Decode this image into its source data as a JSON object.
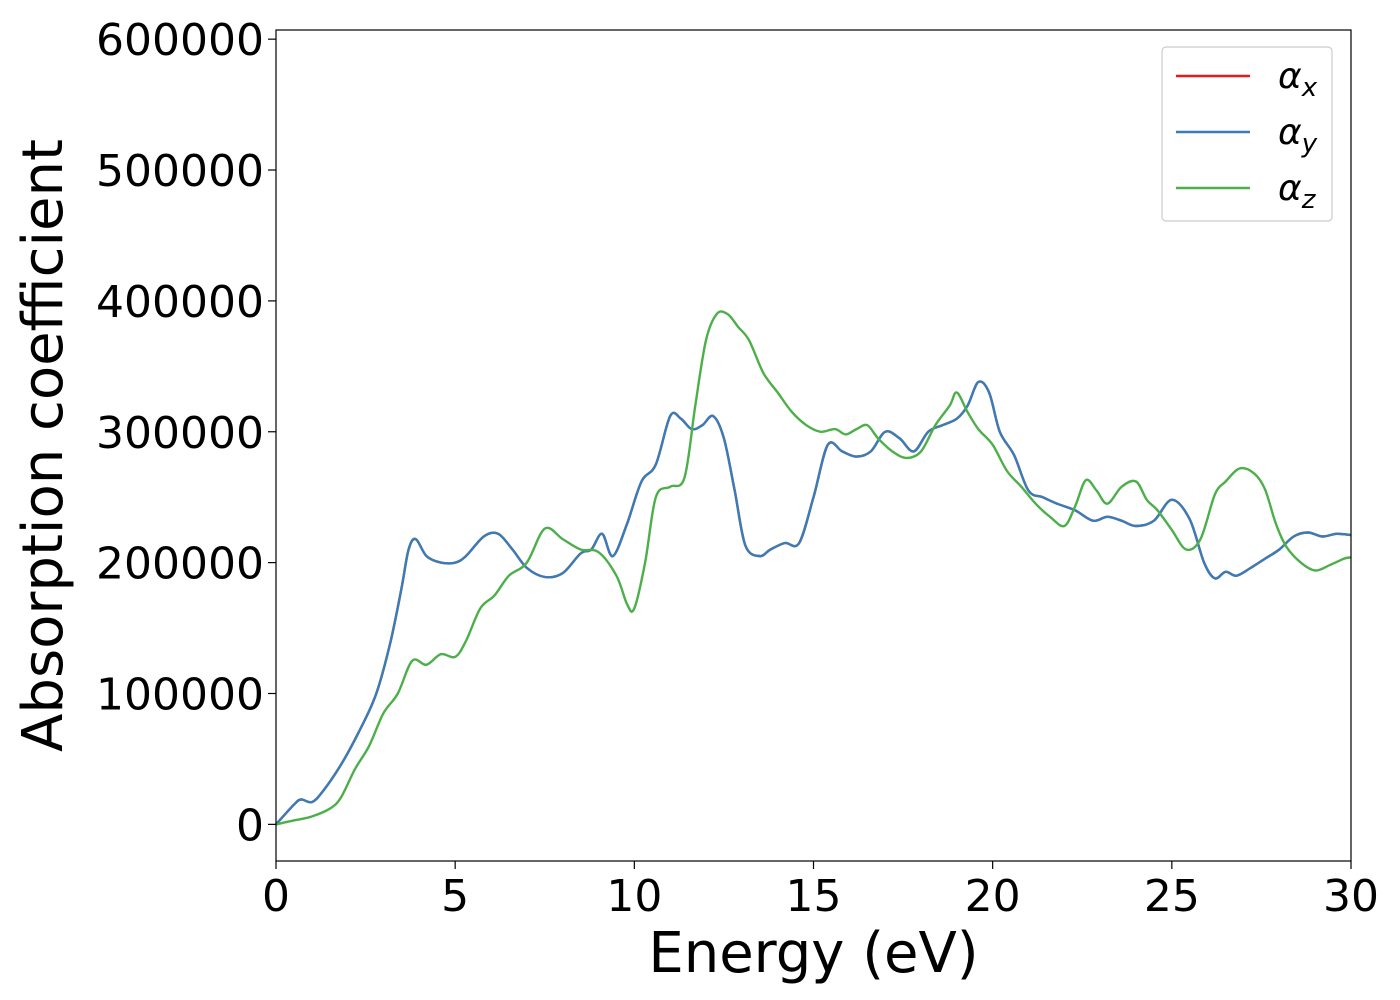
{
  "chart_data": {
    "type": "line",
    "title": "",
    "xlabel": "Energy (eV)",
    "ylabel": "Absorption coefficient",
    "xlim": [
      0,
      30
    ],
    "ylim": [
      -28000,
      607000
    ],
    "x_ticks": [
      0,
      5,
      10,
      15,
      20,
      25,
      30
    ],
    "y_ticks": [
      0,
      100000,
      200000,
      300000,
      400000,
      500000,
      600000
    ],
    "grid": false,
    "legend_position": "top-right",
    "series": [
      {
        "name": "α_x",
        "legend_main": "α",
        "legend_sub": "x",
        "color": "#e41a1c",
        "x": [
          0,
          0.5,
          0.7,
          1.0,
          1.3,
          1.8,
          2.3,
          2.8,
          3.2,
          3.5,
          3.7,
          3.9,
          4.2,
          4.6,
          5.0,
          5.3,
          5.8,
          6.2,
          6.6,
          7.0,
          7.5,
          8.0,
          8.5,
          8.8,
          9.1,
          9.4,
          9.8,
          10.2,
          10.6,
          11.0,
          11.3,
          11.6,
          11.9,
          12.2,
          12.5,
          12.8,
          13.1,
          13.5,
          13.8,
          14.2,
          14.6,
          15.0,
          15.4,
          15.8,
          16.2,
          16.6,
          17.0,
          17.4,
          17.8,
          18.2,
          18.6,
          19.0,
          19.3,
          19.6,
          19.9,
          20.2,
          20.6,
          21.0,
          21.4,
          21.8,
          22.3,
          22.8,
          23.2,
          23.6,
          24.0,
          24.5,
          25.0,
          25.5,
          25.9,
          26.2,
          26.5,
          26.8,
          27.2,
          27.6,
          28.0,
          28.4,
          28.8,
          29.2,
          29.6,
          30.0
        ],
        "y": [
          0,
          15000,
          19000,
          17000,
          25000,
          45000,
          70000,
          100000,
          140000,
          180000,
          210000,
          218000,
          205000,
          200000,
          200000,
          205000,
          220000,
          222000,
          210000,
          196000,
          189000,
          192000,
          207000,
          210000,
          222000,
          205000,
          230000,
          262000,
          275000,
          312000,
          310000,
          302000,
          305000,
          312000,
          295000,
          255000,
          213000,
          205000,
          210000,
          215000,
          215000,
          250000,
          290000,
          285000,
          281000,
          285000,
          300000,
          295000,
          285000,
          300000,
          305000,
          310000,
          320000,
          338000,
          330000,
          300000,
          282000,
          255000,
          250000,
          245000,
          240000,
          232000,
          235000,
          232000,
          228000,
          232000,
          248000,
          233000,
          200000,
          188000,
          193000,
          190000,
          196000,
          203000,
          210000,
          220000,
          223000,
          220000,
          222000,
          221000
        ]
      },
      {
        "name": "α_y",
        "legend_main": "α",
        "legend_sub": "y",
        "color": "#377eb8",
        "x": [
          0,
          0.5,
          0.7,
          1.0,
          1.3,
          1.8,
          2.3,
          2.8,
          3.2,
          3.5,
          3.7,
          3.9,
          4.2,
          4.6,
          5.0,
          5.3,
          5.8,
          6.2,
          6.6,
          7.0,
          7.5,
          8.0,
          8.5,
          8.8,
          9.1,
          9.4,
          9.8,
          10.2,
          10.6,
          11.0,
          11.3,
          11.6,
          11.9,
          12.2,
          12.5,
          12.8,
          13.1,
          13.5,
          13.8,
          14.2,
          14.6,
          15.0,
          15.4,
          15.8,
          16.2,
          16.6,
          17.0,
          17.4,
          17.8,
          18.2,
          18.6,
          19.0,
          19.3,
          19.6,
          19.9,
          20.2,
          20.6,
          21.0,
          21.4,
          21.8,
          22.3,
          22.8,
          23.2,
          23.6,
          24.0,
          24.5,
          25.0,
          25.5,
          25.9,
          26.2,
          26.5,
          26.8,
          27.2,
          27.6,
          28.0,
          28.4,
          28.8,
          29.2,
          29.6,
          30.0
        ],
        "y": [
          0,
          15000,
          19000,
          17000,
          25000,
          45000,
          70000,
          100000,
          140000,
          180000,
          210000,
          218000,
          205000,
          200000,
          200000,
          205000,
          220000,
          222000,
          210000,
          196000,
          189000,
          192000,
          207000,
          210000,
          222000,
          205000,
          230000,
          262000,
          275000,
          312000,
          310000,
          302000,
          305000,
          312000,
          295000,
          255000,
          213000,
          205000,
          210000,
          215000,
          215000,
          250000,
          290000,
          285000,
          281000,
          285000,
          300000,
          295000,
          285000,
          300000,
          305000,
          310000,
          320000,
          338000,
          330000,
          300000,
          282000,
          255000,
          250000,
          245000,
          240000,
          232000,
          235000,
          232000,
          228000,
          232000,
          248000,
          233000,
          200000,
          188000,
          193000,
          190000,
          196000,
          203000,
          210000,
          220000,
          223000,
          220000,
          222000,
          221000
        ]
      },
      {
        "name": "α_z",
        "legend_main": "α",
        "legend_sub": "z",
        "color": "#4daf4a",
        "x": [
          0,
          0.5,
          1.0,
          1.5,
          1.8,
          2.2,
          2.6,
          3.0,
          3.4,
          3.8,
          4.2,
          4.6,
          5.0,
          5.3,
          5.7,
          6.1,
          6.5,
          7.0,
          7.5,
          8.0,
          8.5,
          9.0,
          9.5,
          9.8,
          10.0,
          10.3,
          10.6,
          11.0,
          11.4,
          11.7,
          12.0,
          12.3,
          12.6,
          12.9,
          13.2,
          13.6,
          14.0,
          14.4,
          14.8,
          15.2,
          15.6,
          15.9,
          16.2,
          16.5,
          16.8,
          17.2,
          17.6,
          18.0,
          18.4,
          18.8,
          19.0,
          19.3,
          19.6,
          20.0,
          20.4,
          20.8,
          21.2,
          21.6,
          22.0,
          22.3,
          22.6,
          22.9,
          23.2,
          23.6,
          24.0,
          24.3,
          24.6,
          25.0,
          25.4,
          25.8,
          26.2,
          26.5,
          26.9,
          27.3,
          27.6,
          27.9,
          28.2,
          28.6,
          29.0,
          29.4,
          29.8,
          30.0
        ],
        "y": [
          0,
          3000,
          6000,
          12000,
          20000,
          42000,
          60000,
          85000,
          100000,
          125000,
          122000,
          130000,
          128000,
          140000,
          165000,
          175000,
          190000,
          200000,
          226000,
          218000,
          210000,
          208000,
          190000,
          168000,
          165000,
          200000,
          250000,
          258000,
          265000,
          320000,
          370000,
          390000,
          390000,
          380000,
          370000,
          345000,
          330000,
          315000,
          305000,
          300000,
          302000,
          298000,
          302000,
          305000,
          295000,
          285000,
          280000,
          285000,
          305000,
          320000,
          330000,
          315000,
          302000,
          290000,
          270000,
          258000,
          245000,
          235000,
          228000,
          243000,
          263000,
          255000,
          245000,
          258000,
          262000,
          248000,
          240000,
          225000,
          210000,
          218000,
          252000,
          262000,
          272000,
          268000,
          256000,
          230000,
          212000,
          200000,
          194000,
          198000,
          203000,
          204000
        ]
      }
    ]
  }
}
